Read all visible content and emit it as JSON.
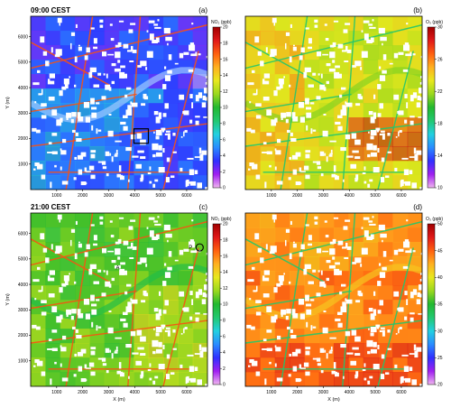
{
  "chart_data": [
    {
      "type": "heatmap",
      "panel_label": "(a)",
      "time_label": "09:00 CEST",
      "field": "no2",
      "colorbar_label": "NO₂ (ppb)",
      "colorbar_ticks": [
        "0",
        "2",
        "4",
        "6",
        "8",
        "10",
        "12",
        "14",
        "16",
        "18",
        "20"
      ],
      "clim": [
        0,
        20
      ],
      "dominant_value": 4,
      "xlabel": "",
      "ylabel": "Y (m)",
      "x_ticks": [
        "1000",
        "2000",
        "3000",
        "4000",
        "5000",
        "6000"
      ],
      "y_ticks": [
        "1000",
        "2000",
        "3000",
        "4000",
        "5000",
        "6000"
      ],
      "xlim": [
        0,
        6800
      ],
      "ylim": [
        0,
        6800
      ],
      "annotations": [
        {
          "type": "square",
          "x": 4250,
          "y": 2100
        }
      ]
    },
    {
      "type": "heatmap",
      "panel_label": "(b)",
      "time_label": "",
      "field": "o3",
      "colorbar_label": "O₃ (ppb)",
      "colorbar_ticks": [
        "10",
        "14",
        "18",
        "22",
        "26",
        "30"
      ],
      "clim": [
        10,
        30
      ],
      "dominant_value": 23,
      "xlabel": "",
      "ylabel": "",
      "x_ticks": [
        "1000",
        "2000",
        "3000",
        "4000",
        "5000",
        "6000"
      ],
      "y_ticks": [],
      "xlim": [
        0,
        6800
      ],
      "ylim": [
        0,
        6800
      ],
      "annotations": []
    },
    {
      "type": "heatmap",
      "panel_label": "(c)",
      "time_label": "21:00  CEST",
      "field": "no2",
      "colorbar_label": "NO₂ (ppb)",
      "colorbar_ticks": [
        "0",
        "2",
        "4",
        "6",
        "8",
        "10",
        "12",
        "14",
        "16",
        "18",
        "20"
      ],
      "clim": [
        0,
        20
      ],
      "dominant_value": 11,
      "xlabel": "X (m)",
      "ylabel": "Y (m)",
      "x_ticks": [
        "1000",
        "2000",
        "3000",
        "4000",
        "5000",
        "6000"
      ],
      "y_ticks": [
        "1000",
        "2000",
        "3000",
        "4000",
        "5000",
        "6000"
      ],
      "xlim": [
        0,
        6800
      ],
      "ylim": [
        0,
        6800
      ],
      "annotations": [
        {
          "type": "text",
          "text": "P",
          "x": 6150,
          "y": 5450
        },
        {
          "type": "circle",
          "x": 6500,
          "y": 5450
        },
        {
          "type": "text",
          "text": "A",
          "x": 3350,
          "y": 4650
        }
      ]
    },
    {
      "type": "heatmap",
      "panel_label": "(d)",
      "time_label": "",
      "field": "o3",
      "colorbar_label": "O₃ (ppb)",
      "colorbar_ticks": [
        "20",
        "25",
        "30",
        "35",
        "40",
        "45",
        "50"
      ],
      "clim": [
        20,
        50
      ],
      "dominant_value": 44,
      "xlabel": "X (m)",
      "ylabel": "",
      "x_ticks": [
        "1000",
        "2000",
        "3000",
        "4000",
        "5000",
        "6000"
      ],
      "y_ticks": [],
      "xlim": [
        0,
        6800
      ],
      "ylim": [
        0,
        6800
      ],
      "annotations": []
    }
  ],
  "colors": {
    "colormap": [
      "#f0b6f0",
      "#a020f0",
      "#3030ff",
      "#2a8cff",
      "#22d0e0",
      "#22c870",
      "#22b830",
      "#9ad81e",
      "#e8e81e",
      "#ffb020",
      "#ff6010",
      "#e01818",
      "#a00000"
    ],
    "road": "#ff4a1a",
    "water": "#9ec8ff",
    "buildings": "#ffffff",
    "frame": "#000000",
    "annotation": "#000000"
  }
}
